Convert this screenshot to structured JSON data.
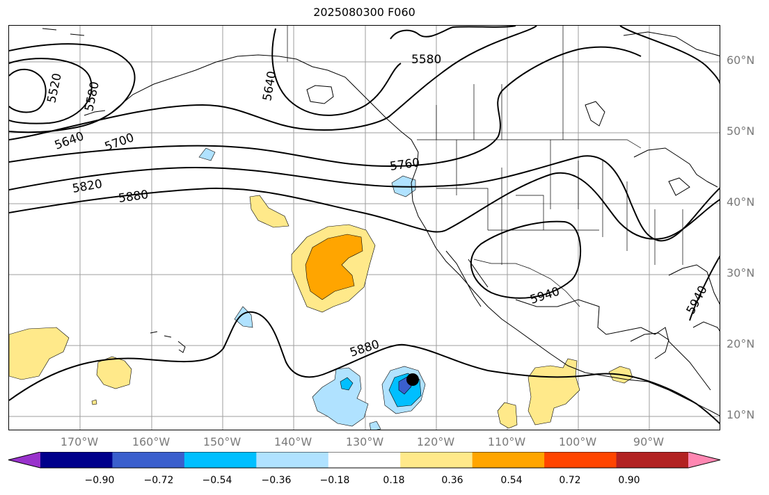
{
  "title": "2025080300 F060",
  "lat_labels": [
    "60°N",
    "50°N",
    "40°N",
    "30°N",
    "20°N",
    "10°N"
  ],
  "lon_labels": [
    "170°W",
    "160°W",
    "150°W",
    "140°W",
    "130°W",
    "120°W",
    "110°W",
    "100°W",
    "90°W"
  ],
  "contour_labels": [
    "5520",
    "5580",
    "5640",
    "5580",
    "5640",
    "5700",
    "5760",
    "5820",
    "5880",
    "5880",
    "5940",
    "5940"
  ],
  "colorbar": {
    "colors": [
      "#9932cc",
      "#00008b",
      "#3a5fcd",
      "#00bfff",
      "#b0e2ff",
      "#ffffff",
      "#ffe98a",
      "#ffa500",
      "#ff4500",
      "#b22222",
      "#ff87b2"
    ],
    "tick_labels": [
      "−0.90",
      "−0.72",
      "−0.54",
      "−0.36",
      "−0.18",
      "0.18",
      "0.36",
      "0.54",
      "0.72",
      "0.90"
    ]
  },
  "colors": {
    "land_outline": "#000000",
    "grid": "#9e9e9e",
    "contour": "#000000",
    "tick_label": "#7a7a7a",
    "marker": "#000000"
  }
}
